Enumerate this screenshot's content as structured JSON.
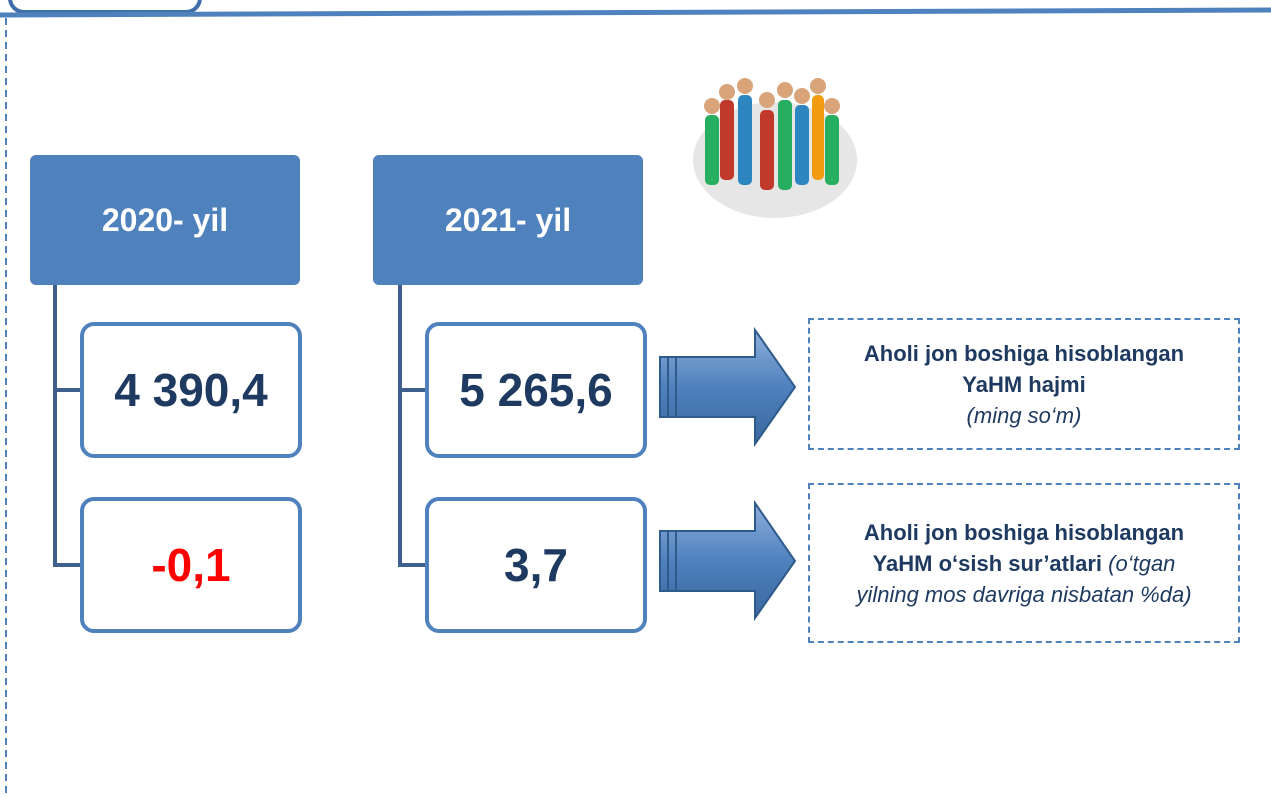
{
  "years": [
    {
      "label": "2020- yil",
      "values": [
        "4 390,4",
        "-0,1"
      ]
    },
    {
      "label": "2021- yil",
      "values": [
        "5 265,6",
        "3,7"
      ]
    }
  ],
  "indicators": [
    {
      "title": "Aholi jon boshiga hisoblangan YaHM hajmi",
      "note": "(ming so‘m)"
    },
    {
      "title": "Aholi jon boshiga hisoblangan YaHM o‘sish sur’atlari",
      "note": "(o‘tgan yilning mos davriga nisbatan %da)"
    }
  ]
}
